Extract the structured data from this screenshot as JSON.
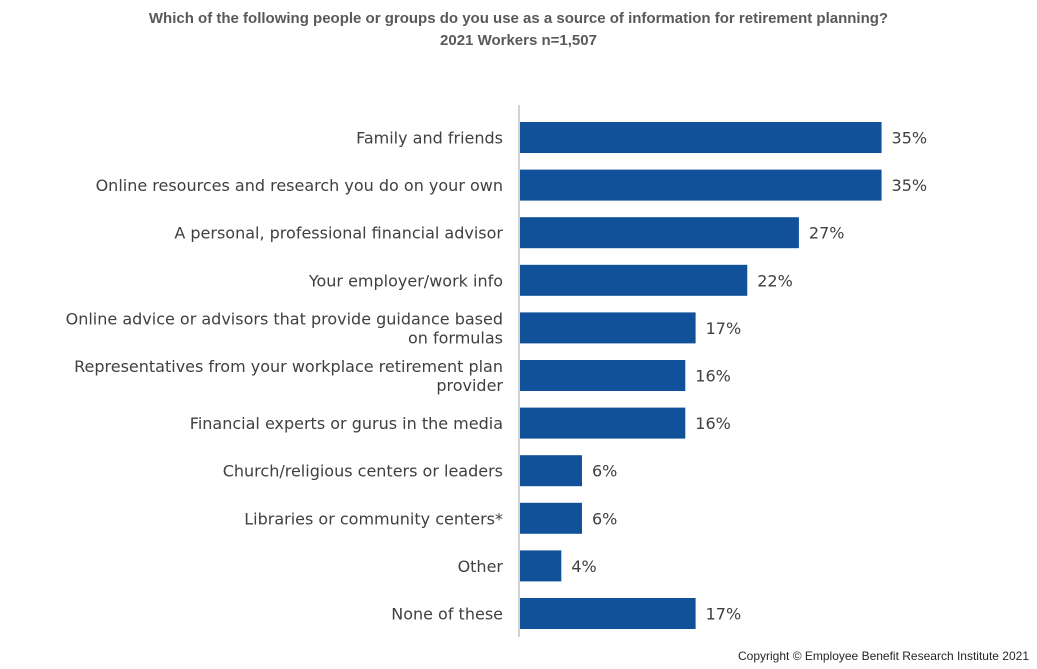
{
  "title": "Which of the following people or groups do you use as a source of information for retirement planning?",
  "subtitle": "2021 Workers n=1,507",
  "copyright": "Copyright © Employee Benefit Research Institute 2021",
  "colors": {
    "bar": "#11519A",
    "axis": "#A6A6A6",
    "text": "#404040"
  },
  "chart_data": {
    "type": "bar",
    "orientation": "horizontal",
    "title": "Which of the following people or groups do you use as a source of information for retirement planning?",
    "subtitle": "2021 Workers n=1,507",
    "categories": [
      [
        "Family and friends"
      ],
      [
        "Online resources and research you do on your own"
      ],
      [
        "A personal, professional financial advisor"
      ],
      [
        "Your employer/work info"
      ],
      [
        "Online advice or advisors that provide guidance based",
        "on formulas"
      ],
      [
        "Representatives from your workplace retirement plan",
        "provider"
      ],
      [
        "Financial experts or gurus in the media"
      ],
      [
        "Church/religious centers or leaders"
      ],
      [
        "Libraries or community centers*"
      ],
      [
        "Other"
      ],
      [
        "None of these"
      ]
    ],
    "values": [
      35,
      35,
      27,
      22,
      17,
      16,
      16,
      6,
      6,
      4,
      17
    ],
    "value_labels": [
      "35%",
      "35%",
      "27%",
      "22%",
      "17%",
      "16%",
      "16%",
      "6%",
      "6%",
      "4%",
      "17%"
    ],
    "xlim": [
      0,
      35
    ],
    "grid": false,
    "legend": "none"
  }
}
